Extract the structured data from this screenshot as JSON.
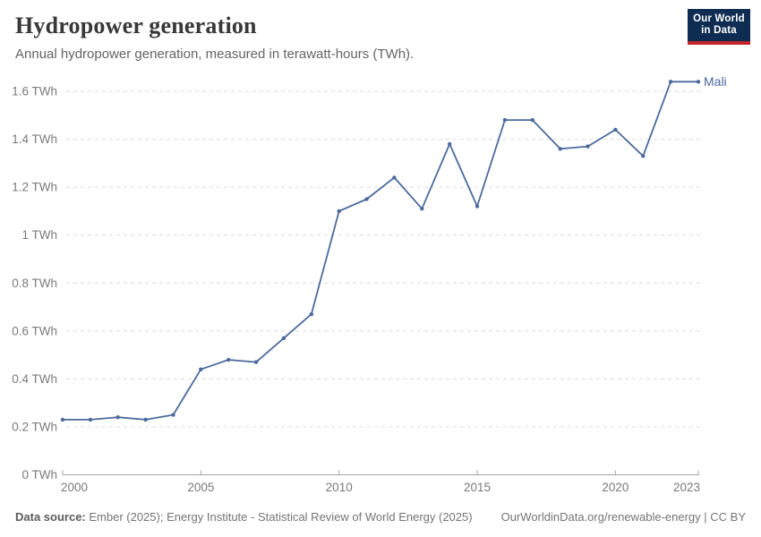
{
  "header": {
    "title": "Hydropower generation",
    "subtitle": "Annual hydropower generation, measured in terawatt-hours (TWh)."
  },
  "logo": {
    "line1": "Our World",
    "line2": "in Data",
    "bg_color": "#0f2d52",
    "accent_color": "#c4262c"
  },
  "chart_data": {
    "type": "line",
    "title": "Hydropower generation",
    "subtitle": "Annual hydropower generation, measured in terawatt-hours (TWh).",
    "unit": "TWh",
    "x": [
      2000,
      2001,
      2002,
      2003,
      2004,
      2005,
      2006,
      2007,
      2008,
      2009,
      2010,
      2011,
      2012,
      2013,
      2014,
      2015,
      2016,
      2017,
      2018,
      2019,
      2020,
      2021,
      2022,
      2023
    ],
    "series": [
      {
        "name": "Mali",
        "color": "#4C6A9C",
        "values": [
          0.23,
          0.23,
          0.24,
          0.23,
          0.25,
          0.44,
          0.48,
          0.47,
          0.57,
          0.67,
          1.1,
          1.15,
          1.24,
          1.11,
          1.38,
          1.12,
          1.48,
          1.48,
          1.36,
          1.37,
          1.44,
          1.33,
          1.64,
          1.64
        ]
      }
    ],
    "xlim": [
      2000,
      2023
    ],
    "ylim": [
      0,
      1.6
    ],
    "y_ticks": [
      {
        "value": 0,
        "label": "0 TWh"
      },
      {
        "value": 0.2,
        "label": "0.2 TWh"
      },
      {
        "value": 0.4,
        "label": "0.4 TWh"
      },
      {
        "value": 0.6,
        "label": "0.6 TWh"
      },
      {
        "value": 0.8,
        "label": "0.8 TWh"
      },
      {
        "value": 1,
        "label": "1 TWh"
      },
      {
        "value": 1.2,
        "label": "1.2 TWh"
      },
      {
        "value": 1.4,
        "label": "1.4 TWh"
      },
      {
        "value": 1.6,
        "label": "1.6 TWh"
      }
    ],
    "x_ticks": [
      {
        "value": 2000,
        "label": "2000",
        "anchor": "start"
      },
      {
        "value": 2005,
        "label": "2005",
        "anchor": "middle"
      },
      {
        "value": 2010,
        "label": "2010",
        "anchor": "middle"
      },
      {
        "value": 2015,
        "label": "2015",
        "anchor": "middle"
      },
      {
        "value": 2020,
        "label": "2020",
        "anchor": "middle"
      },
      {
        "value": 2023,
        "label": "2023",
        "anchor": "end"
      }
    ],
    "grid": "horizontal dashed",
    "legend_position": "end-of-line label"
  },
  "colors": {
    "line": "#4C6A9C",
    "gridline": "#dcdcdc",
    "axis_line": "#a5a5a5",
    "tick_text": "#7a7a7a",
    "title_text": "#383838",
    "subtitle_text": "#646464",
    "footer_text": "#757575"
  },
  "footer": {
    "source_label": "Data source:",
    "source_text": " Ember (2025); Energy Institute - Statistical Review of World Energy (2025)",
    "link_text": "OurWorldinData.org/renewable-energy",
    "separator": " | ",
    "license_text": "CC BY"
  }
}
